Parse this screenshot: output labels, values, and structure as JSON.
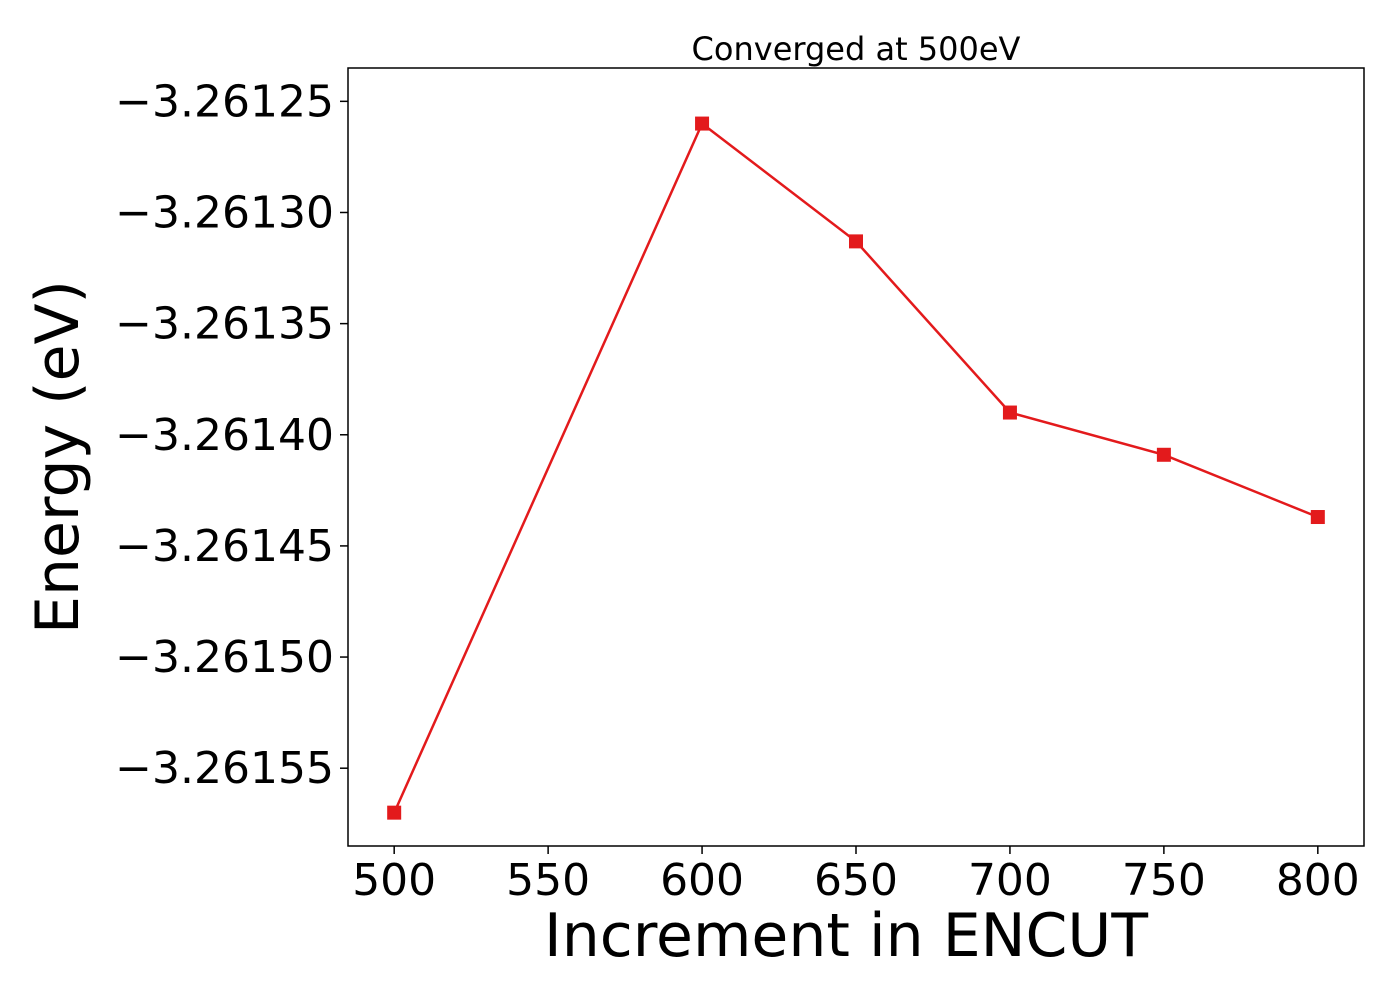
{
  "chart_data": {
    "type": "line",
    "title": "Converged at 500eV",
    "xlabel": "Increment in ENCUT",
    "ylabel": "Energy (eV)",
    "x": [
      500,
      600,
      650,
      700,
      750,
      800
    ],
    "series": [
      {
        "values": [
          -3.26157,
          -3.26126,
          -3.261313,
          -3.26139,
          -3.261409,
          -3.261437
        ],
        "color": "#e31a1c",
        "marker": "square"
      }
    ],
    "xlim": [
      485,
      815
    ],
    "ylim": [
      -3.261585,
      -3.261235
    ],
    "xticks": [
      500,
      550,
      600,
      650,
      700,
      750,
      800
    ],
    "xtick_labels": [
      "500",
      "550",
      "600",
      "650",
      "700",
      "750",
      "800"
    ],
    "yticks": [
      -3.26125,
      -3.2613,
      -3.26135,
      -3.2614,
      -3.26145,
      -3.2615,
      -3.26155
    ],
    "ytick_labels": [
      "−3.26125",
      "−3.26130",
      "−3.26135",
      "−3.26140",
      "−3.26145",
      "−3.26150",
      "−3.26155"
    ],
    "grid": false,
    "legend": "none"
  }
}
